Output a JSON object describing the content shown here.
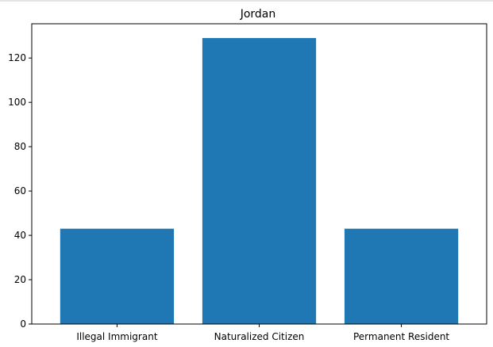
{
  "chart_data": {
    "type": "bar",
    "title": "Jordan",
    "xlabel": "",
    "ylabel": "",
    "categories": [
      "Illegal Immigrant",
      "Naturalized Citizen",
      "Permanent Resident"
    ],
    "values": [
      43,
      129,
      43
    ],
    "ylim": [
      0,
      135.45
    ],
    "yticks": [
      0,
      20,
      40,
      60,
      80,
      100,
      120
    ],
    "grid": false,
    "legend": "none",
    "bar_color": "#1f77b4"
  }
}
